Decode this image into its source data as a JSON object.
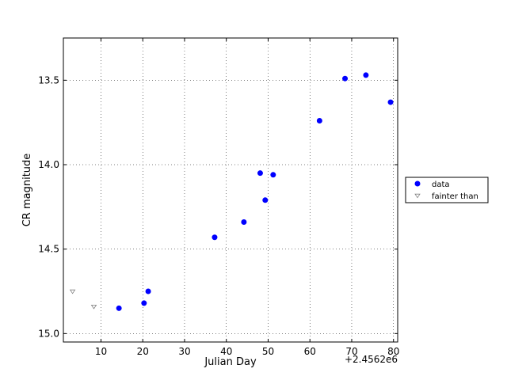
{
  "chart_data": {
    "type": "scatter",
    "xlabel": "Julian Day",
    "ylabel": "CR magnitude",
    "x_offset_label": "+2.4562e6",
    "xlim": [
      1,
      81
    ],
    "ylim": [
      15.05,
      13.25
    ],
    "y_inverted": true,
    "x_ticks": [
      10,
      20,
      30,
      40,
      50,
      60,
      70,
      80
    ],
    "y_ticks": [
      13.5,
      14.0,
      14.5,
      15.0
    ],
    "y_tick_labels": [
      "13.5",
      "14.0",
      "14.5",
      "15.0"
    ],
    "grid": true,
    "legend_placement": "right, outside plot",
    "series": [
      {
        "name": "data",
        "marker": "circle",
        "color": "#0000ff",
        "x": [
          14.3,
          20.3,
          21.3,
          37.2,
          44.2,
          48.1,
          49.3,
          51.2,
          62.3,
          68.4,
          73.4,
          79.3
        ],
        "y": [
          14.85,
          14.82,
          14.75,
          14.43,
          14.34,
          14.05,
          14.21,
          14.06,
          13.74,
          13.49,
          13.47,
          13.63
        ]
      },
      {
        "name": "fainter than",
        "marker": "triangle-down",
        "color": "#808080",
        "x": [
          3.2,
          8.3
        ],
        "y": [
          14.75,
          14.84
        ]
      }
    ]
  }
}
